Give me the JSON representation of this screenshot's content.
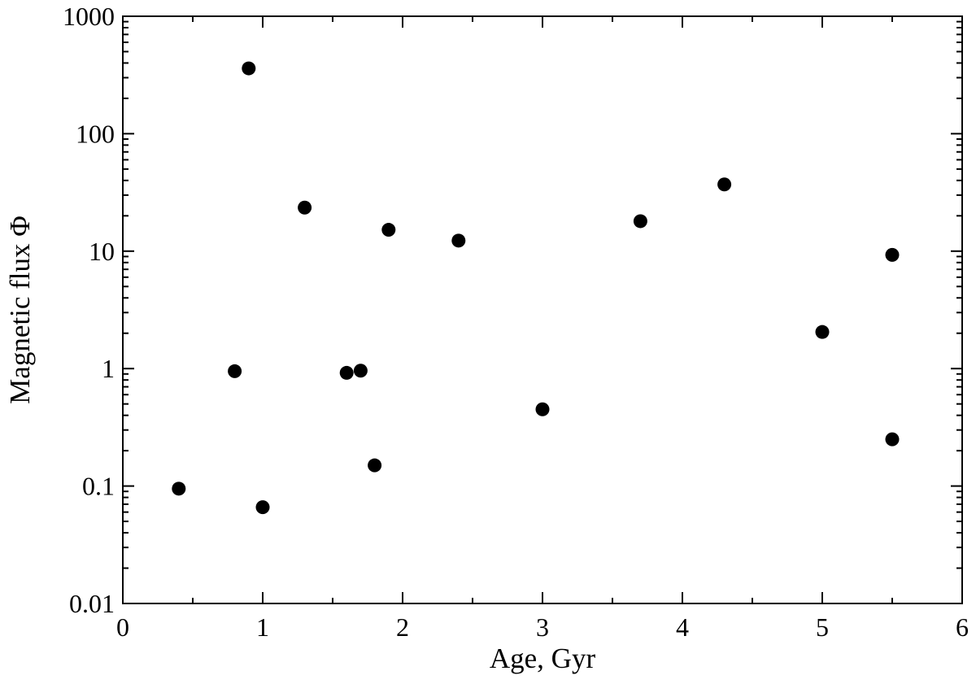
{
  "chart_data": {
    "type": "scatter",
    "title": "",
    "xlabel": "Age, Gyr",
    "ylabel": "Magnetic flux Φ",
    "xlim": [
      0,
      6
    ],
    "ylim": [
      0.01,
      1000
    ],
    "yscale": "log",
    "grid": false,
    "marker_color": "#000000",
    "x_ticks": [
      "0",
      "1",
      "2",
      "3",
      "4",
      "5",
      "6"
    ],
    "y_ticks": [
      "0.01",
      "0.1",
      "1",
      "10",
      "100",
      "1000"
    ],
    "points": [
      {
        "x": 0.4,
        "y": 0.095
      },
      {
        "x": 0.8,
        "y": 0.95
      },
      {
        "x": 0.9,
        "y": 360
      },
      {
        "x": 1.0,
        "y": 0.066
      },
      {
        "x": 1.3,
        "y": 23.5
      },
      {
        "x": 1.6,
        "y": 0.92
      },
      {
        "x": 1.7,
        "y": 0.96
      },
      {
        "x": 1.8,
        "y": 0.15
      },
      {
        "x": 1.9,
        "y": 15.2
      },
      {
        "x": 2.4,
        "y": 12.3
      },
      {
        "x": 3.0,
        "y": 0.45
      },
      {
        "x": 3.7,
        "y": 18.0
      },
      {
        "x": 4.3,
        "y": 37.0
      },
      {
        "x": 5.0,
        "y": 2.05
      },
      {
        "x": 5.5,
        "y": 9.3
      },
      {
        "x": 5.5,
        "y": 0.25
      }
    ]
  }
}
